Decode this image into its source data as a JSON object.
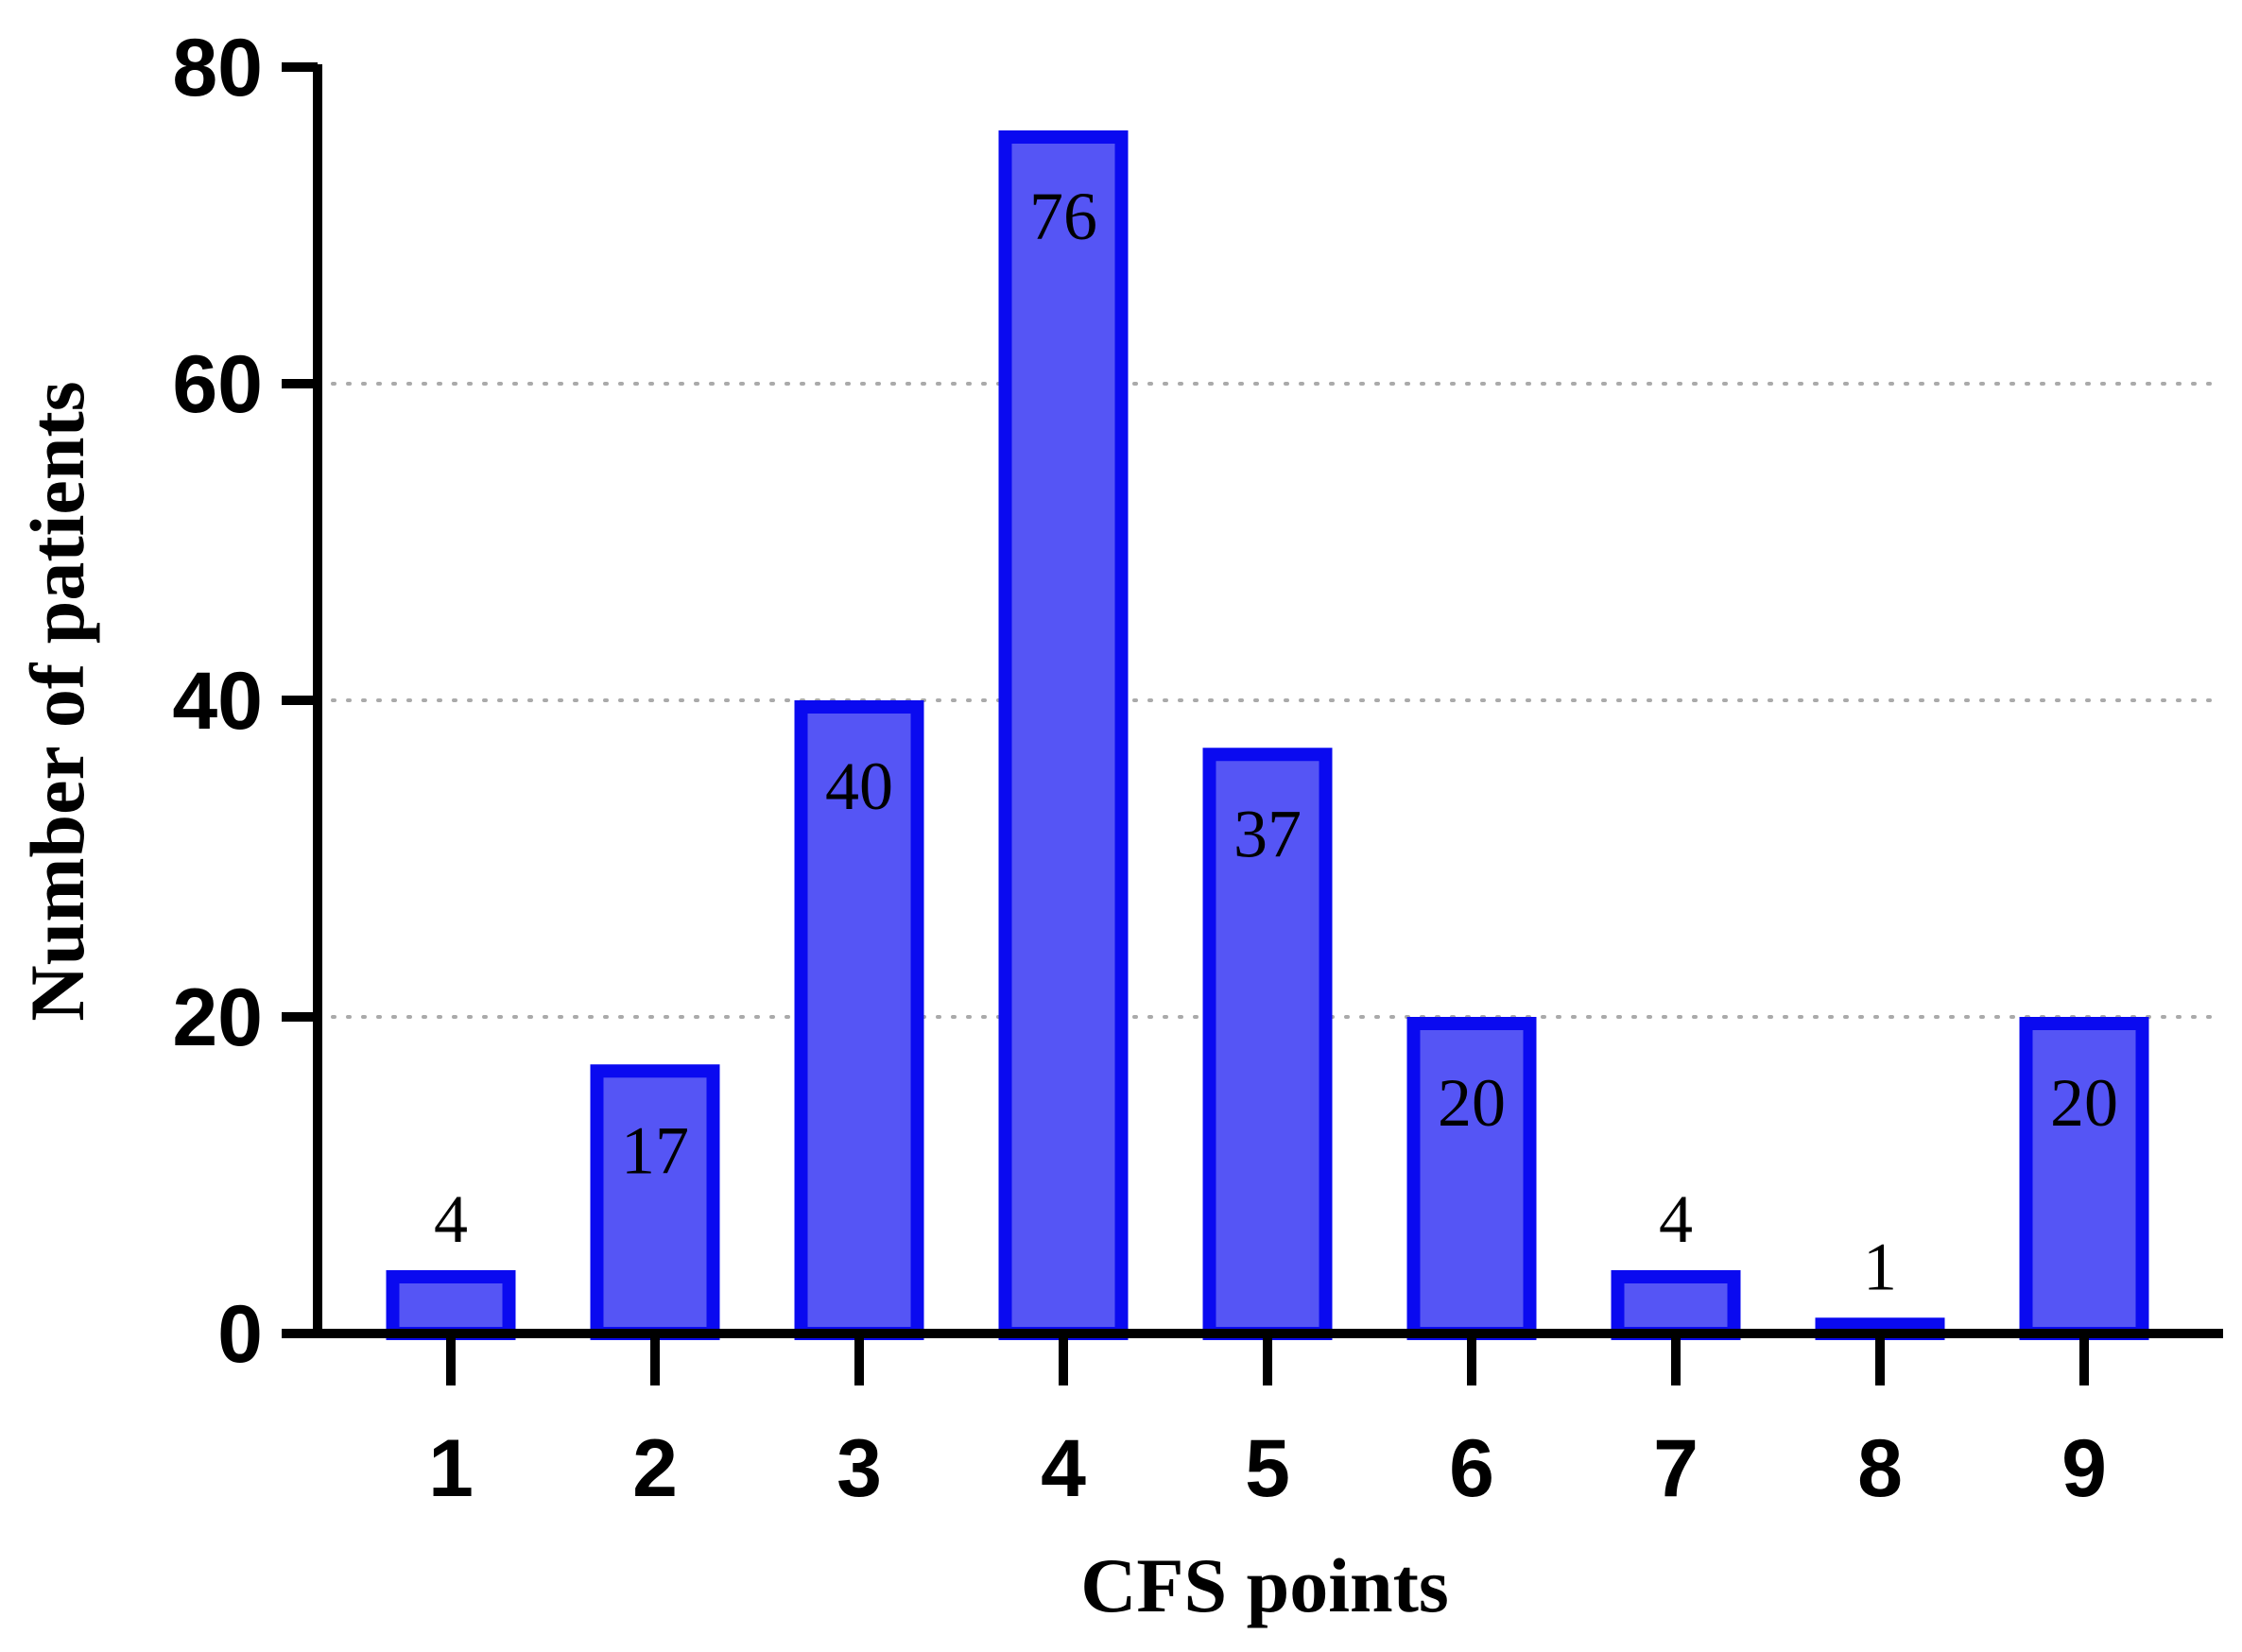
{
  "chart_data": {
    "type": "bar",
    "xlabel": "CFS points",
    "ylabel": "Number of patients",
    "categories": [
      "1",
      "2",
      "3",
      "4",
      "5",
      "6",
      "7",
      "8",
      "9"
    ],
    "values": [
      4,
      17,
      40,
      76,
      37,
      20,
      4,
      1,
      20
    ],
    "data_labels": [
      "4",
      "17",
      "40",
      "76",
      "37",
      "20",
      "4",
      "1",
      "20"
    ],
    "ylim": [
      0,
      80
    ],
    "yticks": [
      0,
      20,
      40,
      60,
      80
    ],
    "ytick_labels": [
      "0",
      "20",
      "40",
      "60",
      "80"
    ],
    "grid": "horizontal dotted",
    "colors": {
      "bar_fill": "#5555f5",
      "bar_edge": "#0a0af0",
      "axis": "#000000",
      "grid": "#aaaaaa"
    }
  }
}
